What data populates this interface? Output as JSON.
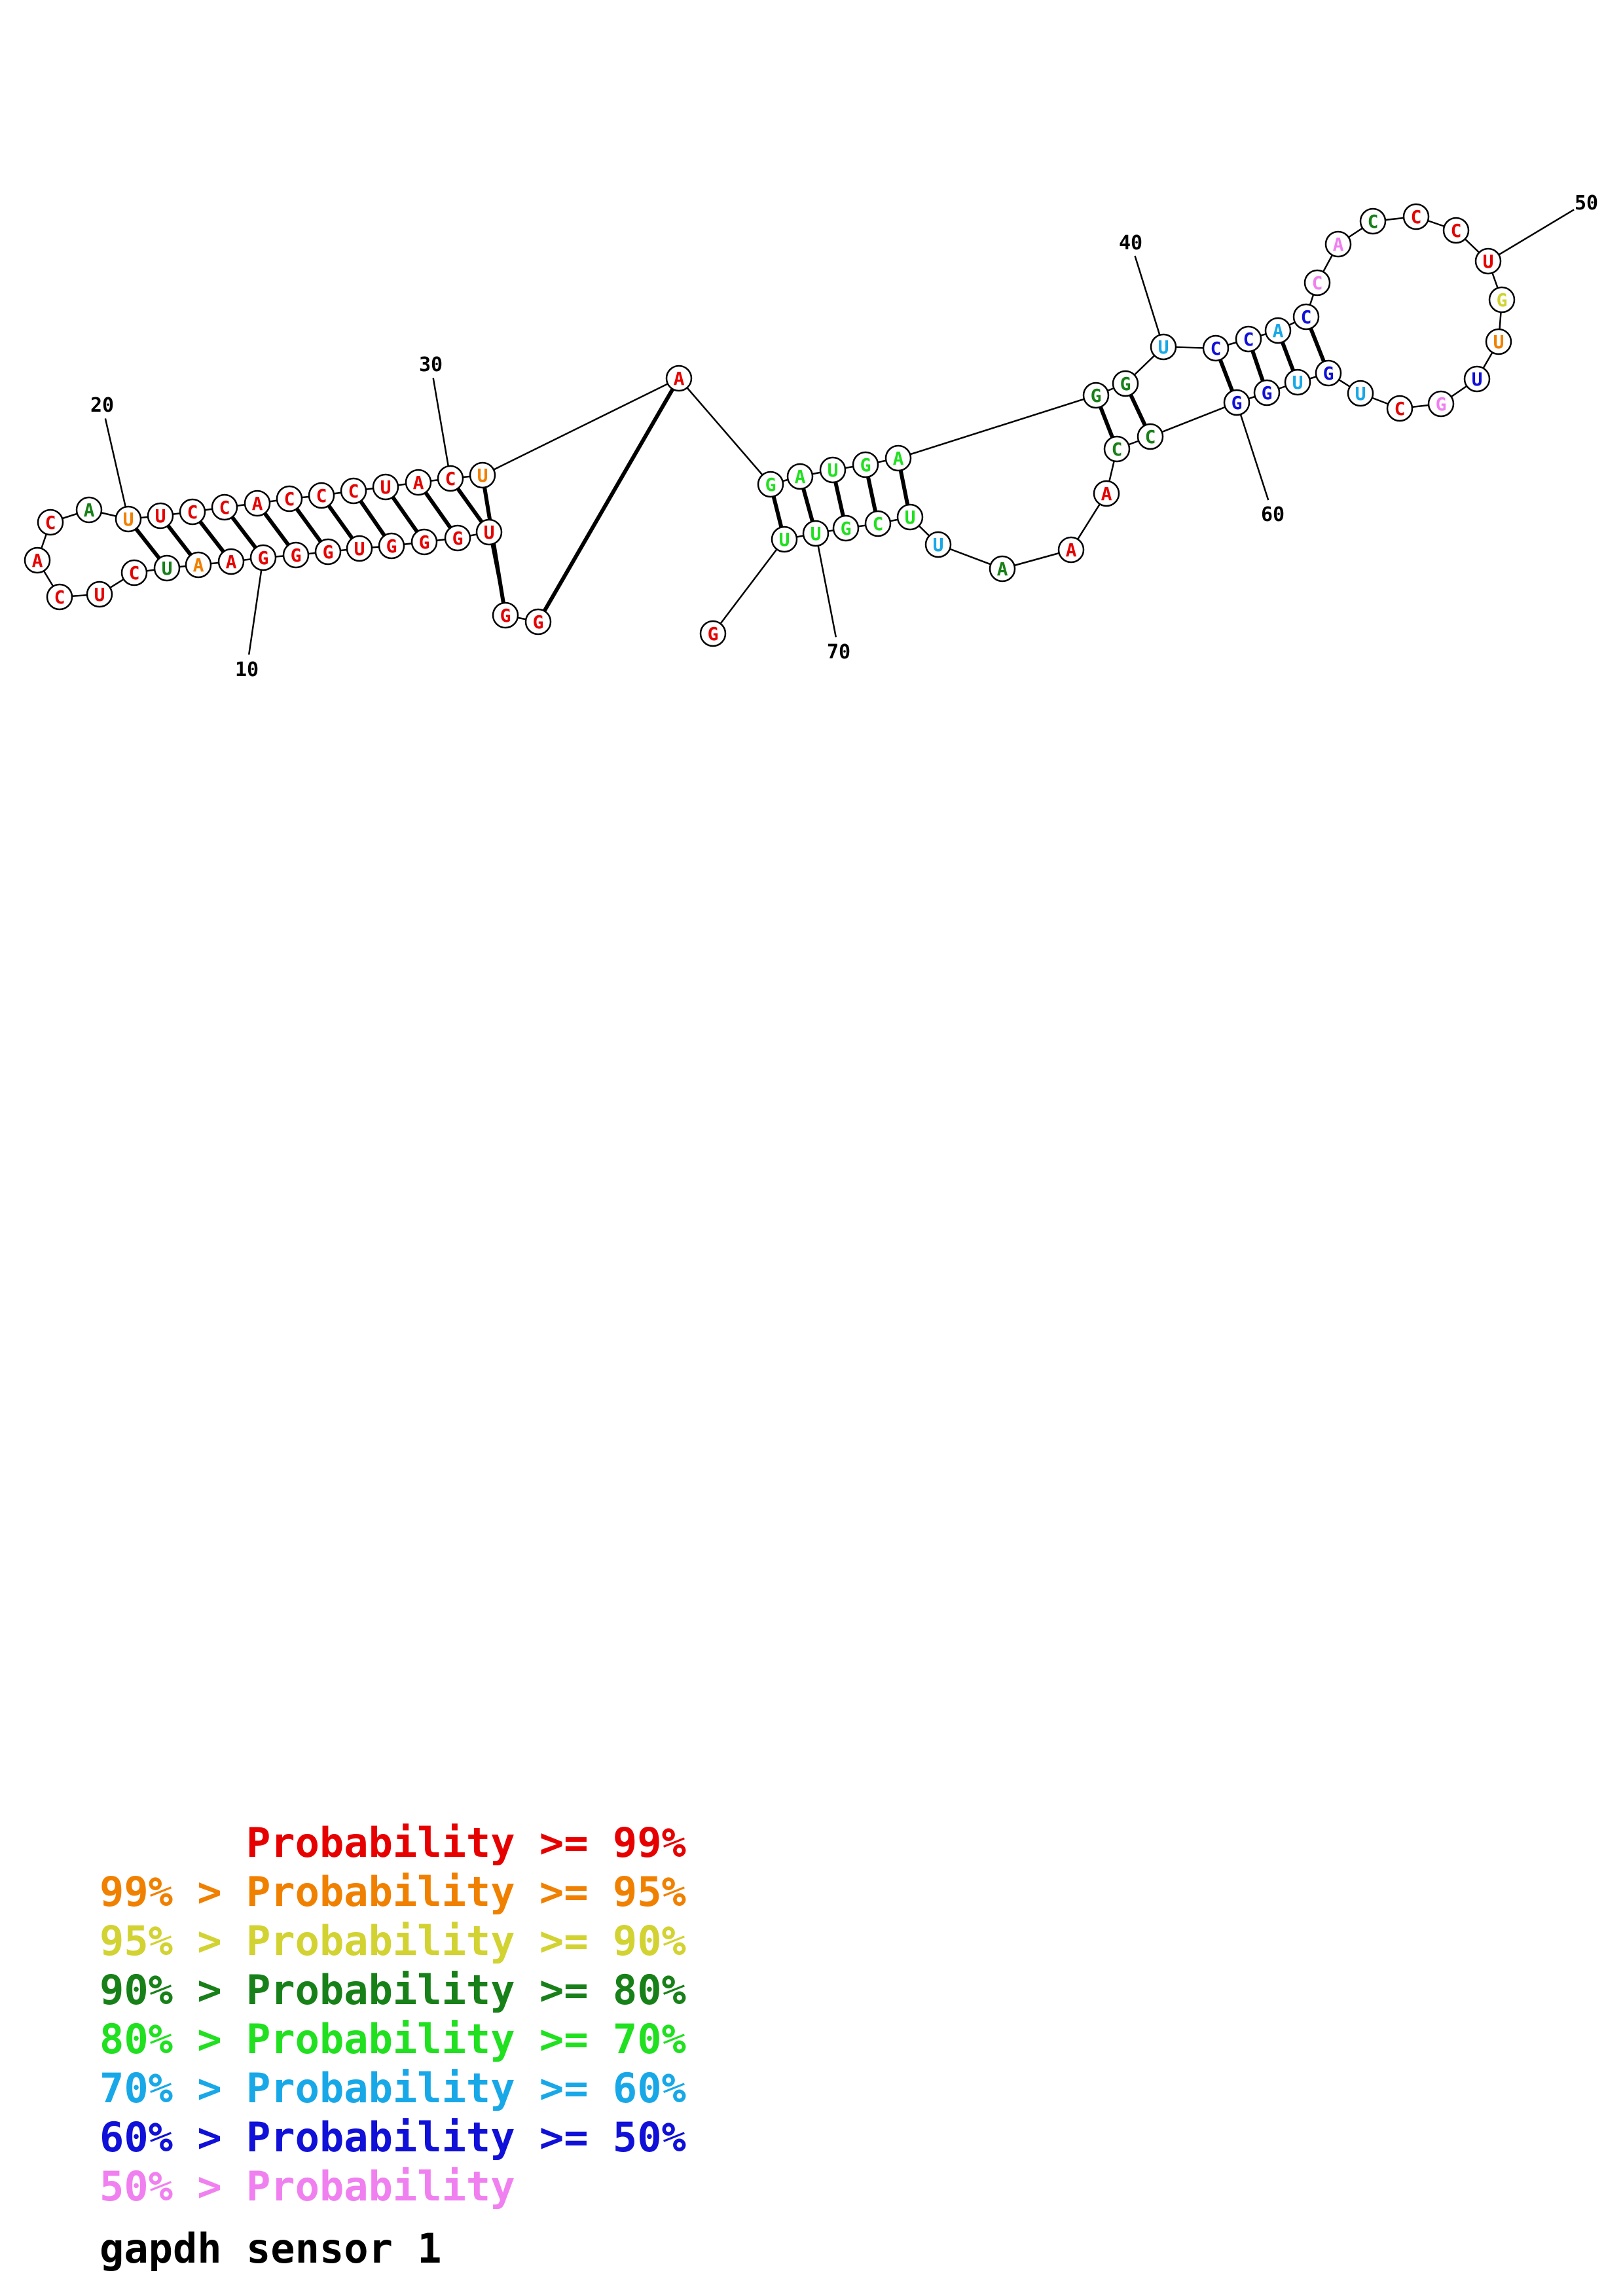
{
  "probability_colors": {
    "p99": "#e60000",
    "p95": "#f08000",
    "p90": "#d2d232",
    "p80": "#188018",
    "p70": "#20e020",
    "p60": "#18a8e8",
    "p50": "#1010d8",
    "plow": "#f080f0"
  },
  "nucleotides": [
    {
      "n": 1,
      "base": "G",
      "prob": "p99"
    },
    {
      "n": 2,
      "base": "G",
      "prob": "p99"
    },
    {
      "n": 3,
      "base": "U",
      "prob": "p99"
    },
    {
      "n": 4,
      "base": "G",
      "prob": "p99"
    },
    {
      "n": 5,
      "base": "G",
      "prob": "p99"
    },
    {
      "n": 6,
      "base": "G",
      "prob": "p99"
    },
    {
      "n": 7,
      "base": "U",
      "prob": "p99"
    },
    {
      "n": 8,
      "base": "G",
      "prob": "p99"
    },
    {
      "n": 9,
      "base": "G",
      "prob": "p99"
    },
    {
      "n": 10,
      "base": "G",
      "prob": "p99"
    },
    {
      "n": 11,
      "base": "A",
      "prob": "p99"
    },
    {
      "n": 12,
      "base": "A",
      "prob": "p95"
    },
    {
      "n": 13,
      "base": "U",
      "prob": "p80"
    },
    {
      "n": 14,
      "base": "C",
      "prob": "p99"
    },
    {
      "n": 15,
      "base": "U",
      "prob": "p99"
    },
    {
      "n": 16,
      "base": "C",
      "prob": "p99"
    },
    {
      "n": 17,
      "base": "A",
      "prob": "p99"
    },
    {
      "n": 18,
      "base": "C",
      "prob": "p99"
    },
    {
      "n": 19,
      "base": "A",
      "prob": "p80"
    },
    {
      "n": 20,
      "base": "U",
      "prob": "p95"
    },
    {
      "n": 21,
      "base": "U",
      "prob": "p99"
    },
    {
      "n": 22,
      "base": "C",
      "prob": "p99"
    },
    {
      "n": 23,
      "base": "C",
      "prob": "p99"
    },
    {
      "n": 24,
      "base": "A",
      "prob": "p99"
    },
    {
      "n": 25,
      "base": "C",
      "prob": "p99"
    },
    {
      "n": 26,
      "base": "C",
      "prob": "p99"
    },
    {
      "n": 27,
      "base": "C",
      "prob": "p99"
    },
    {
      "n": 28,
      "base": "U",
      "prob": "p99"
    },
    {
      "n": 29,
      "base": "A",
      "prob": "p99"
    },
    {
      "n": 30,
      "base": "C",
      "prob": "p99"
    },
    {
      "n": 31,
      "base": "U",
      "prob": "p95"
    },
    {
      "n": 32,
      "base": "A",
      "prob": "p99"
    },
    {
      "n": 33,
      "base": "G",
      "prob": "p70"
    },
    {
      "n": 34,
      "base": "A",
      "prob": "p70"
    },
    {
      "n": 35,
      "base": "U",
      "prob": "p70"
    },
    {
      "n": 36,
      "base": "G",
      "prob": "p70"
    },
    {
      "n": 37,
      "base": "A",
      "prob": "p70"
    },
    {
      "n": 38,
      "base": "G",
      "prob": "p80"
    },
    {
      "n": 39,
      "base": "G",
      "prob": "p80"
    },
    {
      "n": 40,
      "base": "U",
      "prob": "p60"
    },
    {
      "n": 41,
      "base": "C",
      "prob": "p50"
    },
    {
      "n": 42,
      "base": "C",
      "prob": "p50"
    },
    {
      "n": 43,
      "base": "A",
      "prob": "p60"
    },
    {
      "n": 44,
      "base": "C",
      "prob": "p50"
    },
    {
      "n": 45,
      "base": "C",
      "prob": "plow"
    },
    {
      "n": 46,
      "base": "A",
      "prob": "plow"
    },
    {
      "n": 47,
      "base": "C",
      "prob": "p80"
    },
    {
      "n": 48,
      "base": "C",
      "prob": "p99"
    },
    {
      "n": 49,
      "base": "C",
      "prob": "p99"
    },
    {
      "n": 50,
      "base": "U",
      "prob": "p99"
    },
    {
      "n": 51,
      "base": "G",
      "prob": "p90"
    },
    {
      "n": 52,
      "base": "U",
      "prob": "p95"
    },
    {
      "n": 53,
      "base": "U",
      "prob": "p50"
    },
    {
      "n": 54,
      "base": "G",
      "prob": "plow"
    },
    {
      "n": 55,
      "base": "C",
      "prob": "p99"
    },
    {
      "n": 56,
      "base": "U",
      "prob": "p60"
    },
    {
      "n": 57,
      "base": "G",
      "prob": "p50"
    },
    {
      "n": 58,
      "base": "U",
      "prob": "p60"
    },
    {
      "n": 59,
      "base": "G",
      "prob": "p50"
    },
    {
      "n": 60,
      "base": "G",
      "prob": "p50"
    },
    {
      "n": 61,
      "base": "C",
      "prob": "p80"
    },
    {
      "n": 62,
      "base": "C",
      "prob": "p80"
    },
    {
      "n": 63,
      "base": "A",
      "prob": "p99"
    },
    {
      "n": 64,
      "base": "A",
      "prob": "p99"
    },
    {
      "n": 65,
      "base": "A",
      "prob": "p80"
    },
    {
      "n": 66,
      "base": "U",
      "prob": "p60"
    },
    {
      "n": 67,
      "base": "U",
      "prob": "p70"
    },
    {
      "n": 68,
      "base": "C",
      "prob": "p70"
    },
    {
      "n": 69,
      "base": "G",
      "prob": "p70"
    },
    {
      "n": 70,
      "base": "U",
      "prob": "p70"
    },
    {
      "n": 71,
      "base": "U",
      "prob": "p70"
    },
    {
      "n": 72,
      "base": "G",
      "prob": "p99"
    }
  ],
  "base_pairs": [
    [
      1,
      32
    ],
    [
      2,
      31
    ],
    [
      3,
      30
    ],
    [
      4,
      29
    ],
    [
      5,
      28
    ],
    [
      6,
      27
    ],
    [
      7,
      26
    ],
    [
      8,
      25
    ],
    [
      9,
      24
    ],
    [
      10,
      23
    ],
    [
      11,
      22
    ],
    [
      12,
      21
    ],
    [
      13,
      20
    ],
    [
      33,
      71
    ],
    [
      34,
      70
    ],
    [
      35,
      69
    ],
    [
      36,
      68
    ],
    [
      37,
      67
    ],
    [
      38,
      62
    ],
    [
      39,
      61
    ],
    [
      41,
      60
    ],
    [
      42,
      59
    ],
    [
      43,
      58
    ],
    [
      44,
      57
    ]
  ],
  "position_labels": [
    {
      "n": 10,
      "text": "10"
    },
    {
      "n": 20,
      "text": "20"
    },
    {
      "n": 30,
      "text": "30"
    },
    {
      "n": 40,
      "text": "40"
    },
    {
      "n": 50,
      "text": "50"
    },
    {
      "n": 60,
      "text": "60"
    },
    {
      "n": 70,
      "text": "70"
    }
  ],
  "legend": [
    {
      "prefix": "   ",
      "gt": " ",
      "text": "Probability",
      "ge": ">=",
      "pct": "99%",
      "prob": "p99"
    },
    {
      "prefix": "99%",
      "gt": ">",
      "text": "Probability",
      "ge": ">=",
      "pct": "95%",
      "prob": "p95"
    },
    {
      "prefix": "95%",
      "gt": ">",
      "text": "Probability",
      "ge": ">=",
      "pct": "90%",
      "prob": "p90"
    },
    {
      "prefix": "90%",
      "gt": ">",
      "text": "Probability",
      "ge": ">=",
      "pct": "80%",
      "prob": "p80"
    },
    {
      "prefix": "80%",
      "gt": ">",
      "text": "Probability",
      "ge": ">=",
      "pct": "70%",
      "prob": "p70"
    },
    {
      "prefix": "70%",
      "gt": ">",
      "text": "Probability",
      "ge": ">=",
      "pct": "60%",
      "prob": "p60"
    },
    {
      "prefix": "60%",
      "gt": ">",
      "text": "Probability",
      "ge": ">=",
      "pct": "50%",
      "prob": "p50"
    },
    {
      "prefix": "50%",
      "gt": ">",
      "text": "Probability",
      "ge": "",
      "pct": "",
      "prob": "plow"
    }
  ],
  "caption": "gapdh sensor 1"
}
